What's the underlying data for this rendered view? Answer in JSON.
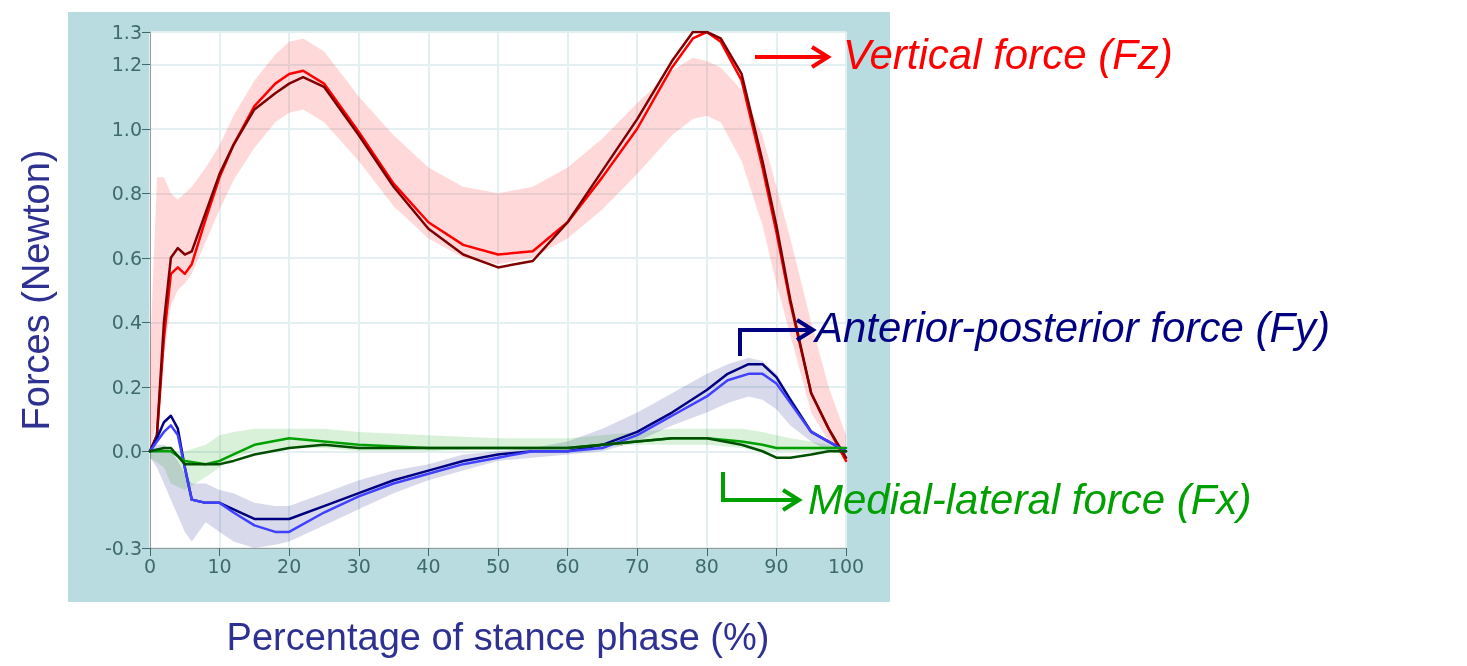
{
  "chart_data": {
    "type": "line",
    "xlabel": "Percentage of stance phase (%)",
    "ylabel": "Forces (Newton)",
    "xlim": [
      0,
      100
    ],
    "xticks": [
      0,
      10,
      20,
      30,
      40,
      50,
      60,
      70,
      80,
      90,
      100
    ],
    "ylim": [
      -0.3,
      1.3
    ],
    "yticks": [
      {
        "value": -0.3,
        "label": "-0.3"
      },
      {
        "value": 0,
        "label": "0.0"
      },
      {
        "value": 0.2,
        "label": "0.2"
      },
      {
        "value": 0.4,
        "label": "0.4"
      },
      {
        "value": 0.6,
        "label": "0.6"
      },
      {
        "value": 0.8,
        "label": "0.8"
      },
      {
        "value": 1.0,
        "label": "1.0"
      },
      {
        "value": 1.2,
        "label": "1.2"
      },
      {
        "value": 1.3,
        "label": "1.3"
      }
    ],
    "grid": true,
    "legend": "right",
    "marker": "none",
    "series": [
      {
        "name": "Vertical force (Fz)",
        "color": "#ff0000",
        "x": [
          0,
          1,
          2,
          3,
          4,
          5,
          6,
          8,
          10,
          12,
          15,
          18,
          20,
          22,
          25,
          30,
          35,
          40,
          45,
          50,
          55,
          60,
          65,
          70,
          75,
          78,
          80,
          82,
          85,
          88,
          90,
          92,
          95,
          97.5,
          100
        ],
        "values": [
          0,
          0.05,
          0.35,
          0.55,
          0.57,
          0.55,
          0.58,
          0.72,
          0.85,
          0.95,
          1.07,
          1.14,
          1.17,
          1.18,
          1.14,
          0.99,
          0.83,
          0.71,
          0.64,
          0.61,
          0.62,
          0.71,
          0.85,
          1.0,
          1.19,
          1.28,
          1.3,
          1.27,
          1.15,
          0.88,
          0.68,
          0.46,
          0.18,
          0.07,
          -0.03
        ],
        "lower": [
          0,
          0.1,
          0.3,
          0.45,
          0.5,
          0.52,
          0.55,
          0.65,
          0.75,
          0.84,
          0.94,
          1.02,
          1.05,
          1.06,
          1.02,
          0.9,
          0.76,
          0.66,
          0.6,
          0.58,
          0.6,
          0.66,
          0.75,
          0.86,
          0.98,
          1.03,
          1.04,
          1.02,
          0.9,
          0.7,
          0.52,
          0.36,
          0.12,
          0.03,
          -0.02
        ],
        "upper": [
          0.3,
          0.85,
          0.85,
          0.8,
          0.78,
          0.8,
          0.82,
          0.88,
          0.95,
          1.04,
          1.15,
          1.23,
          1.27,
          1.28,
          1.24,
          1.1,
          0.98,
          0.88,
          0.82,
          0.8,
          0.82,
          0.88,
          0.97,
          1.08,
          1.18,
          1.22,
          1.21,
          1.19,
          1.12,
          0.98,
          0.82,
          0.66,
          0.4,
          0.2,
          0.05
        ]
      },
      {
        "color": "#800000",
        "x": [
          0,
          1,
          2,
          3,
          4,
          5,
          6,
          8,
          10,
          12,
          15,
          18,
          20,
          22,
          25,
          30,
          35,
          40,
          45,
          50,
          55,
          60,
          65,
          70,
          75,
          78,
          80,
          82,
          85,
          88,
          90,
          92,
          95,
          97.5,
          100
        ],
        "values": [
          0,
          0.05,
          0.4,
          0.6,
          0.63,
          0.61,
          0.62,
          0.74,
          0.86,
          0.95,
          1.06,
          1.11,
          1.14,
          1.16,
          1.13,
          0.98,
          0.82,
          0.69,
          0.61,
          0.57,
          0.59,
          0.71,
          0.87,
          1.03,
          1.21,
          1.3,
          1.3,
          1.28,
          1.17,
          0.9,
          0.7,
          0.47,
          0.18,
          0.07,
          -0.02
        ]
      },
      {
        "name": "Anterior-posterior force (Fy)",
        "color": "#000080",
        "x": [
          0,
          1,
          2,
          3,
          4,
          5,
          6,
          8,
          10,
          12,
          15,
          18,
          20,
          25,
          30,
          35,
          40,
          45,
          50,
          55,
          60,
          65,
          70,
          75,
          80,
          83,
          86,
          88,
          90,
          92,
          95,
          97.5,
          100
        ],
        "values": [
          0,
          0.04,
          0.09,
          0.11,
          0.07,
          -0.05,
          -0.15,
          -0.16,
          -0.16,
          -0.18,
          -0.21,
          -0.21,
          -0.21,
          -0.17,
          -0.13,
          -0.09,
          -0.06,
          -0.03,
          -0.01,
          0.0,
          0.0,
          0.02,
          0.06,
          0.12,
          0.19,
          0.24,
          0.27,
          0.27,
          0.23,
          0.16,
          0.06,
          0.03,
          0.0
        ],
        "lower": [
          -0.02,
          -0.05,
          -0.1,
          -0.15,
          -0.2,
          -0.25,
          -0.28,
          -0.22,
          -0.25,
          -0.28,
          -0.3,
          -0.29,
          -0.28,
          -0.23,
          -0.18,
          -0.13,
          -0.09,
          -0.06,
          -0.03,
          -0.02,
          -0.01,
          0.0,
          0.03,
          0.08,
          0.12,
          0.15,
          0.17,
          0.16,
          0.13,
          0.08,
          0.03,
          0.0,
          -0.01
        ],
        "upper": [
          0.02,
          0.02,
          0.02,
          0.0,
          -0.03,
          -0.07,
          -0.1,
          -0.1,
          -0.12,
          -0.13,
          -0.16,
          -0.17,
          -0.17,
          -0.13,
          -0.09,
          -0.06,
          -0.04,
          -0.01,
          0.0,
          0.01,
          0.03,
          0.07,
          0.12,
          0.18,
          0.24,
          0.27,
          0.29,
          0.28,
          0.24,
          0.17,
          0.07,
          0.03,
          0.01
        ]
      },
      {
        "color": "#4040ff",
        "x": [
          0,
          1,
          2,
          3,
          4,
          5,
          6,
          8,
          10,
          12,
          15,
          18,
          20,
          25,
          30,
          35,
          40,
          45,
          50,
          55,
          60,
          65,
          70,
          75,
          80,
          83,
          86,
          88,
          90,
          92,
          95,
          97.5,
          100
        ],
        "values": [
          0,
          0.03,
          0.06,
          0.08,
          0.05,
          -0.05,
          -0.15,
          -0.16,
          -0.16,
          -0.19,
          -0.23,
          -0.25,
          -0.25,
          -0.19,
          -0.14,
          -0.1,
          -0.07,
          -0.04,
          -0.02,
          0.0,
          0.0,
          0.01,
          0.05,
          0.11,
          0.17,
          0.22,
          0.24,
          0.24,
          0.21,
          0.15,
          0.06,
          0.03,
          0.0
        ]
      },
      {
        "name": "Medial-lateral force (Fx)",
        "color": "#00a000",
        "x": [
          0,
          2,
          3,
          5,
          8,
          10,
          12,
          15,
          20,
          25,
          30,
          40,
          50,
          60,
          70,
          75,
          80,
          85,
          88,
          90,
          92,
          95,
          97.5,
          100
        ],
        "values": [
          0,
          0.0,
          0.0,
          -0.03,
          -0.04,
          -0.03,
          -0.01,
          0.02,
          0.04,
          0.03,
          0.02,
          0.01,
          0.01,
          0.01,
          0.03,
          0.04,
          0.04,
          0.03,
          0.02,
          0.01,
          0.01,
          0.01,
          0.01,
          0.01
        ],
        "lower": [
          -0.02,
          -0.05,
          -0.1,
          -0.12,
          -0.08,
          -0.05,
          -0.02,
          0.0,
          0.01,
          0.01,
          0.0,
          0.0,
          0.01,
          0.01,
          0.02,
          0.02,
          0.02,
          0.01,
          0.0,
          0.0,
          0.0,
          0.0,
          0.0,
          0.0
        ],
        "upper": [
          0.01,
          0.01,
          0.0,
          0.0,
          0.02,
          0.05,
          0.06,
          0.07,
          0.07,
          0.07,
          0.06,
          0.05,
          0.04,
          0.04,
          0.06,
          0.07,
          0.07,
          0.07,
          0.06,
          0.05,
          0.04,
          0.03,
          0.02,
          0.01
        ]
      },
      {
        "color": "#005000",
        "x": [
          0,
          2,
          3,
          5,
          8,
          10,
          12,
          15,
          20,
          25,
          30,
          40,
          50,
          60,
          70,
          75,
          80,
          85,
          88,
          90,
          92,
          95,
          97.5,
          100
        ],
        "values": [
          0,
          0.01,
          0.01,
          -0.04,
          -0.04,
          -0.04,
          -0.03,
          -0.01,
          0.01,
          0.02,
          0.01,
          0.01,
          0.01,
          0.01,
          0.03,
          0.04,
          0.04,
          0.02,
          0.0,
          -0.02,
          -0.02,
          -0.01,
          0.0,
          0.0
        ]
      }
    ]
  }
}
